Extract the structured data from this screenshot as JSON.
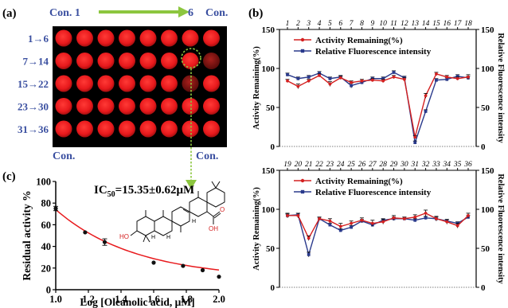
{
  "figure": {
    "panel_a": {
      "label": "(a)",
      "con_left": "Con. 1",
      "con_right_num": "6",
      "con_right": "Con.",
      "con_bottom_left": "Con.",
      "con_bottom_right": "Con.",
      "rows": [
        "1→6",
        "7→14",
        "15→22",
        "23→30",
        "31→36"
      ],
      "well_color": "#e8191c",
      "dim_well_color": "#8a1210",
      "plate_color": "#000000",
      "accent_blue": "#3a4fa0",
      "arrow_green": "#8cc63f"
    },
    "panel_b_label": "(b)",
    "panel_c_label": "(c)",
    "ic50": {
      "base": "IC",
      "sub": "50",
      "value": "=15.35±0.62μM"
    },
    "molecule": {
      "oh": "OH",
      "ho": "HO",
      "h": "H",
      "o": "O"
    }
  },
  "chart_data": [
    {
      "type": "line",
      "panel": "b-top",
      "x": [
        1,
        2,
        3,
        4,
        5,
        6,
        7,
        8,
        9,
        10,
        11,
        12,
        13,
        14,
        15,
        16,
        17,
        18
      ],
      "x_tick_labels": [
        "1",
        "2",
        "3",
        "4",
        "5",
        "6",
        "7",
        "8",
        "9",
        "10",
        "11",
        "12",
        "13",
        "14",
        "15",
        "16",
        "17",
        "18"
      ],
      "ylabel": "Activity Remaining(%)",
      "y2label": "Relative Fluorescence intensity",
      "ylim": [
        0,
        150
      ],
      "y_ticks": [
        0,
        50,
        100,
        150
      ],
      "legend_position": "top-left",
      "grid": false,
      "series": [
        {
          "name": "Activity Remaining(%)",
          "color": "#d42020",
          "marker": "circle",
          "values": [
            84,
            77,
            84,
            91,
            80,
            88,
            82,
            84,
            85,
            84,
            89,
            86,
            12,
            65,
            93,
            89,
            87,
            89
          ],
          "errors": [
            2,
            3,
            2,
            2,
            3,
            2,
            2,
            2,
            2,
            2,
            2,
            2,
            2,
            3,
            2,
            2,
            2,
            3
          ]
        },
        {
          "name": "Relative Fluorescence intensity",
          "color": "#2a3a8c",
          "marker": "square",
          "values": [
            92,
            87,
            89,
            94,
            87,
            89,
            78,
            82,
            87,
            87,
            95,
            88,
            5,
            45,
            85,
            86,
            90,
            88
          ],
          "errors": [
            2,
            2,
            2,
            2,
            2,
            2,
            3,
            2,
            2,
            2,
            2,
            2,
            2,
            2,
            2,
            2,
            2,
            2
          ]
        }
      ]
    },
    {
      "type": "line",
      "panel": "b-bottom",
      "x": [
        19,
        20,
        21,
        22,
        23,
        24,
        25,
        26,
        27,
        28,
        29,
        30,
        31,
        32,
        33,
        34,
        35,
        36
      ],
      "x_tick_labels": [
        "19",
        "20",
        "21",
        "22",
        "23",
        "24",
        "25",
        "26",
        "27",
        "28",
        "29",
        "30",
        "31",
        "32",
        "33",
        "34",
        "35",
        "36"
      ],
      "ylabel": "Activity Remaining(%)",
      "y2label": "Relative Fluorescence intensity",
      "ylim": [
        0,
        150
      ],
      "y_ticks": [
        0,
        50,
        100,
        150
      ],
      "legend_position": "top-left",
      "grid": false,
      "series": [
        {
          "name": "Activity Remaining(%)",
          "color": "#d42020",
          "marker": "circle",
          "values": [
            92,
            92,
            63,
            88,
            85,
            78,
            82,
            86,
            82,
            84,
            89,
            88,
            90,
            95,
            88,
            84,
            79,
            92
          ],
          "errors": [
            3,
            3,
            3,
            2,
            3,
            4,
            3,
            3,
            4,
            3,
            3,
            2,
            3,
            4,
            3,
            3,
            3,
            3
          ]
        },
        {
          "name": "Relative Fluorescence intensity",
          "color": "#2a3a8c",
          "marker": "square",
          "values": [
            92,
            93,
            42,
            88,
            80,
            73,
            77,
            85,
            80,
            86,
            88,
            88,
            86,
            89,
            88,
            85,
            82,
            90
          ],
          "errors": [
            2,
            2,
            3,
            2,
            2,
            2,
            2,
            2,
            2,
            2,
            2,
            2,
            2,
            2,
            2,
            2,
            2,
            2
          ]
        }
      ]
    },
    {
      "type": "scatter",
      "panel": "c",
      "xlabel": "Log [Oleanolic acid, μM]",
      "ylabel": "Residual activity %",
      "xlim": [
        1.0,
        2.0
      ],
      "ylim": [
        0,
        100
      ],
      "x_ticks": [
        "1.0",
        "1.2",
        "1.4",
        "1.6",
        "1.8",
        "2.0"
      ],
      "y_ticks": [
        "0",
        "20",
        "40",
        "60",
        "80",
        "100"
      ],
      "points": [
        {
          "x": 1.0,
          "y": 75,
          "err": 2
        },
        {
          "x": 1.18,
          "y": 53,
          "err": 0
        },
        {
          "x": 1.3,
          "y": 44,
          "err": 3
        },
        {
          "x": 1.6,
          "y": 25,
          "err": 0
        },
        {
          "x": 1.78,
          "y": 22,
          "err": 0
        },
        {
          "x": 1.9,
          "y": 18,
          "err": 0
        },
        {
          "x": 2.0,
          "y": 12,
          "err": 0
        }
      ],
      "fit_curve_color": "#e8191c",
      "marker_color": "#111111"
    }
  ]
}
